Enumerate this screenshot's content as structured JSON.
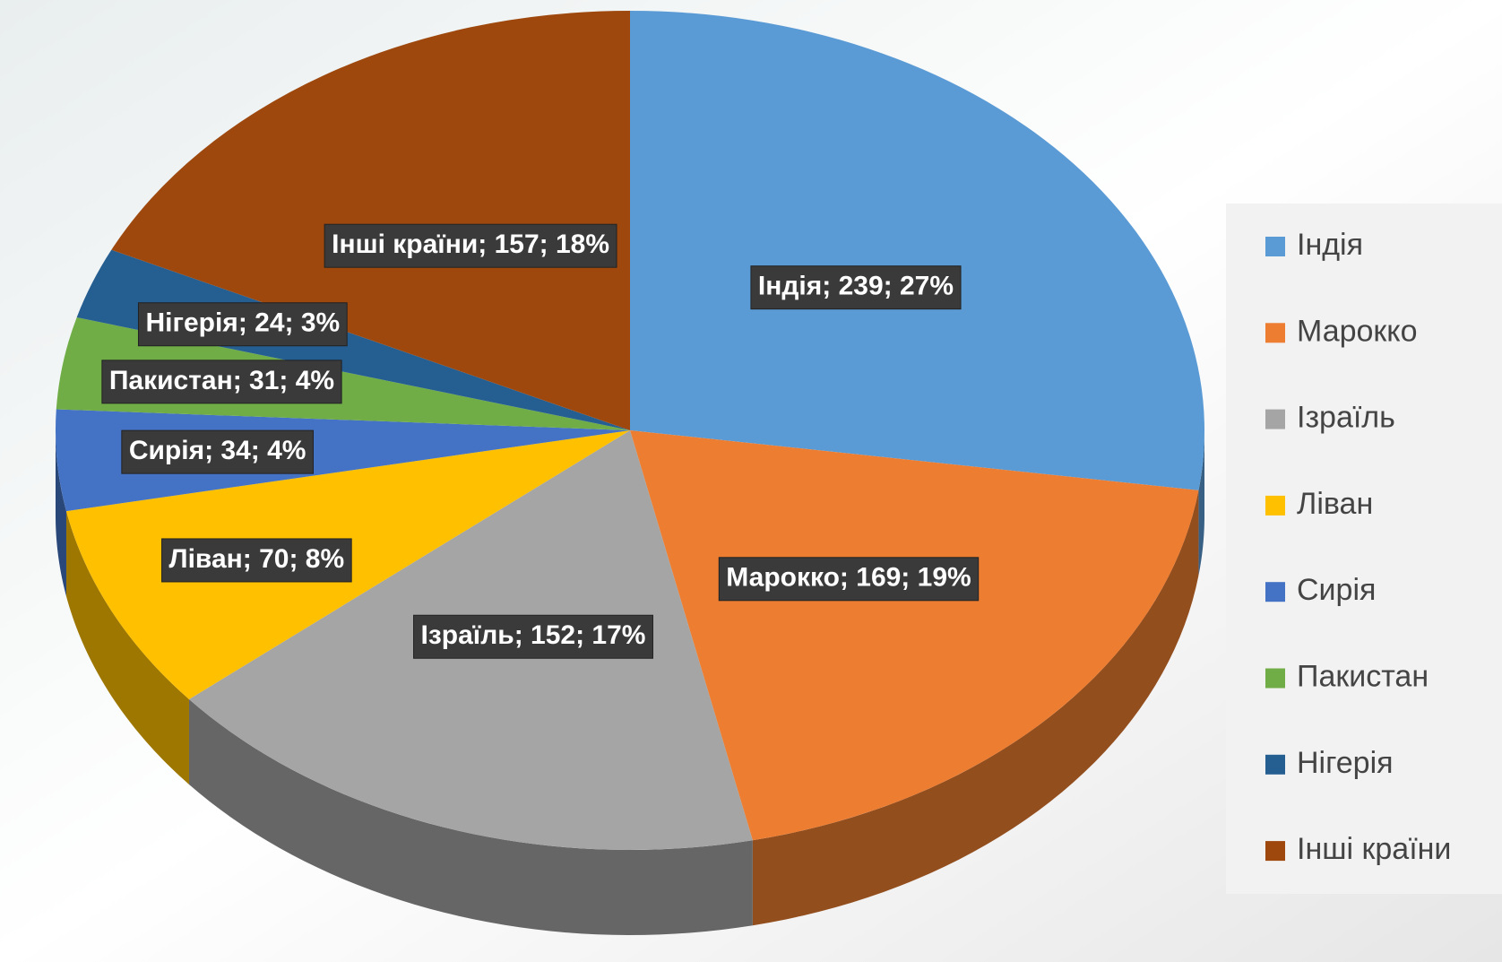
{
  "chart_data": {
    "type": "pie",
    "categories": [
      "Індія",
      "Марокко",
      "Ізраїль",
      "Ліван",
      "Сирія",
      "Пакистан",
      "Нігерія",
      "Інші країни"
    ],
    "values": [
      239,
      169,
      152,
      70,
      34,
      31,
      24,
      157
    ],
    "value_labels": [
      "Індія; 239; 27%",
      "Марокко; 169; 19%",
      "Ізраїль; 152; 17%",
      "Ліван; 70; 8%",
      "Сирія; 34; 4%",
      "Пакистан; 31; 4%",
      "Нігерія; 24; 3%",
      "Інші країни; 157; 18%"
    ],
    "colors": [
      "#5b9bd5",
      "#ed7d31",
      "#a5a5a5",
      "#ffc000",
      "#4472c4",
      "#70ad47",
      "#255e91",
      "#9e480e"
    ],
    "legend": "right"
  }
}
